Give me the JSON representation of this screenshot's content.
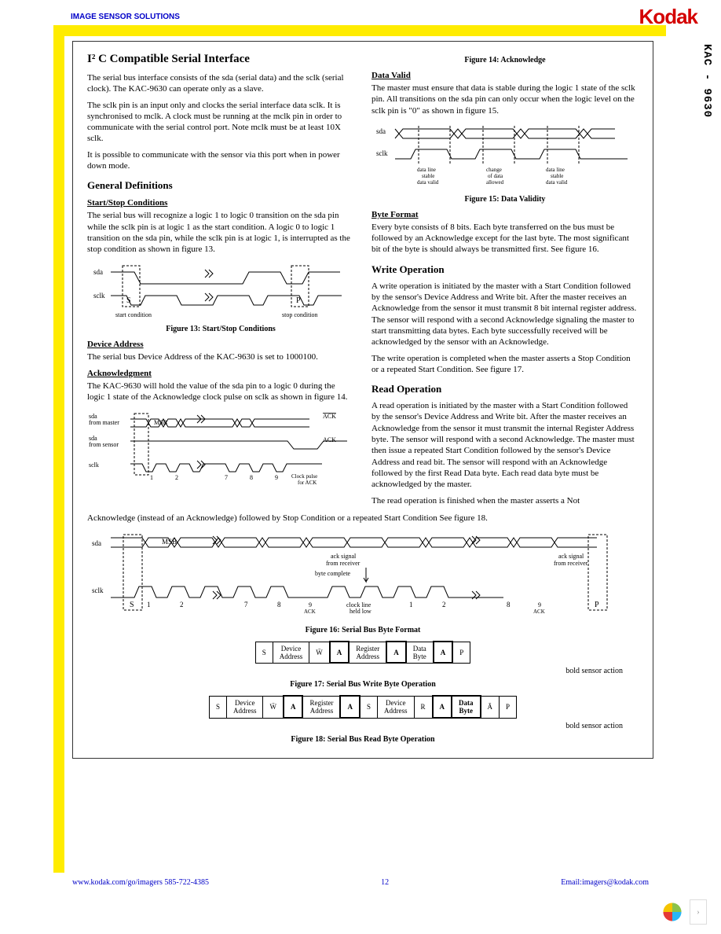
{
  "header": {
    "label": "IMAGE SENSOR SOLUTIONS",
    "logo": "Kodak"
  },
  "sideLabel": "KAC - 9630",
  "title": "I² C Compatible Serial Interface",
  "intro1": "The serial bus interface consists of the sda (serial data) and the sclk (serial clock). The KAC-9630 can operate only as a slave.",
  "intro2": "The sclk pin is an input only and clocks the serial interface data sclk. It is synchronised to mclk. A clock must be running at the mclk pin in order to communicate with the serial control port. Note mclk must be at least 10X sclk.",
  "intro3": "It is possible to communicate with the sensor via this port when in power down mode.",
  "genDef": "General Definitions",
  "startStop": {
    "h": "Start/Stop Conditions",
    "p": "The serial bus will recognize a logic 1 to logic 0 transition on the sda pin while the sclk pin is at logic 1 as the start condition. A logic 0 to logic 1 transition on the sda pin, while the sclk pin is at logic 1, is interrupted as the stop condition as shown in figure 13."
  },
  "fig13": "Figure 13: Start/Stop Conditions",
  "devAddr": {
    "h": "Device Address",
    "p": "The serial bus Device Address of the KAC-9630 is set to 1000100."
  },
  "ack": {
    "h": "Acknowledgment",
    "p": "The KAC-9630 will hold the value of the sda pin to a logic 0 during the logic 1 state of the Acknowledge clock pulse on sclk as shown in figure 14."
  },
  "fig14": "Figure 14: Acknowledge",
  "dataValid": {
    "h": "Data Valid",
    "p": "The master must ensure that data is stable during the logic 1 state of the sclk pin. All transitions on the sda pin can only occur when the logic level on the sclk pin is \"0\" as shown in figure 15."
  },
  "fig15": "Figure 15: Data Validity",
  "byteFmt": {
    "h": "Byte Format",
    "p": "Every byte consists of 8 bits. Each byte transferred on the bus must be followed by an Acknowledge except for the last byte. The most significant bit of the byte is should always be transmitted first. See figure 16."
  },
  "writeOp": {
    "h": "Write Operation",
    "p1": "A write operation is initiated by the master with a Start Condition followed by the sensor's Device Address and Write bit. After the master receives an Acknowledge from the sensor it must transmit 8 bit internal register address. The sensor will respond with a second Acknowledge signaling the master to start transmitting data bytes. Each byte successfully received will be acknowledged by the sensor with an Acknowledge.",
    "p2": "The write operation is completed when the master asserts a Stop Condition or a repeated Start Condition. See figure 17."
  },
  "readOp": {
    "h": "Read Operation",
    "p1": "A read operation is initiated by the master with a Start Condition followed by the sensor's Device Address and Write bit. After the master receives an Acknowledge from the sensor it must transmit the internal Register Address byte. The sensor will respond with a second Acknowledge. The master must then issue a repeated Start Condition followed by the sensor's Device Address and read bit. The sensor will respond with an Acknowledge followed by the first Read Data byte. Each read data byte must be acknowledged by the master.",
    "p2": "The read operation is finished when the master asserts a Not"
  },
  "spanLine": "Acknowledge (instead of an Acknowledge) followed by Stop Condition or a repeated Start Condition See figure 18.",
  "fig16": "Figure 16: Serial Bus Byte Format",
  "fig17": "Figure 17: Serial Bus Write Byte Operation",
  "fig18": "Figure 18: Serial Bus Read Byte Operation",
  "boldNote": "bold sensor action",
  "table17": {
    "cells": [
      "S",
      "Device\nAddress",
      "W̄",
      "A",
      "Register\nAddress",
      "A",
      "Data\nByte",
      "A",
      "P"
    ],
    "bold": [
      3,
      5,
      7
    ]
  },
  "table18": {
    "cells": [
      "S",
      "Device\nAddress",
      "W̄",
      "A",
      "Register\nAddress",
      "A",
      "S",
      "Device\nAddress",
      "R",
      "A",
      "Data\nByte",
      "Ā",
      "P"
    ],
    "bold": [
      3,
      5,
      9,
      10
    ]
  },
  "byteDiagram": {
    "msb": "MSB",
    "ackSig": "ack signal\nfrom receiver",
    "byteComplete": "byte complete",
    "clockLow": "clock line\nheld low",
    "s": "S",
    "p": "P",
    "bits": [
      "1",
      "2",
      "7",
      "8",
      "9\nACK",
      "1",
      "2",
      "8",
      "9\nACK"
    ]
  },
  "diag14": {
    "msb": "MSB",
    "ack": "ACK",
    "nack": "ACK",
    "bits": [
      "1",
      "2",
      "7",
      "8",
      "9"
    ],
    "clockPulse": "Clock pulse\nfor ACK",
    "sdaMaster": "sda\nfrom master",
    "sdaSensor": "sda\nfrom sensor",
    "sclk": "sclk"
  },
  "diag13": {
    "sda": "sda",
    "sclk": "sclk",
    "start": "start condition",
    "stop": "stop condition",
    "s": "S",
    "p": "P"
  },
  "diag15": {
    "sda": "sda",
    "sclk": "sclk",
    "l1": "data line\nstable\ndata valid",
    "l2": "change\nof data\nallowed",
    "l3": "data line\nstable\ndata valid"
  },
  "footer": {
    "left": "www.kodak.com/go/imagers  585-722-4385",
    "mid": "12",
    "right": "Email:imagers@kodak.com"
  }
}
